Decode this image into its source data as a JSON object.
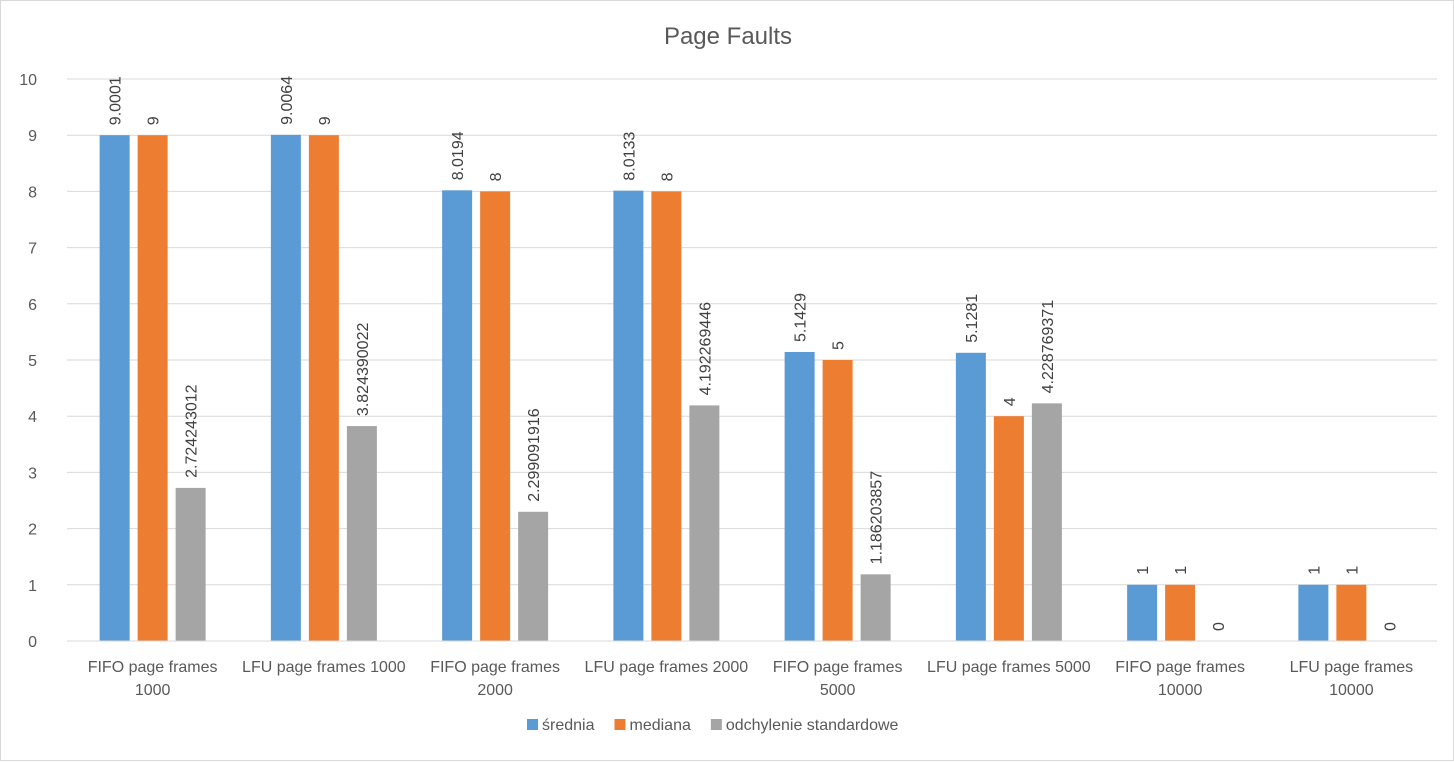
{
  "chart_data": {
    "type": "bar",
    "title": "Page Faults",
    "xlabel": "",
    "ylabel": "",
    "ylim": [
      0,
      10
    ],
    "yticks": [
      "0",
      "1",
      "2",
      "3",
      "4",
      "5",
      "6",
      "7",
      "8",
      "9",
      "10"
    ],
    "grid": true,
    "legend_position": "bottom",
    "categories": [
      [
        "FIFO page frames",
        "1000"
      ],
      [
        "LFU page frames 1000"
      ],
      [
        "FIFO page frames",
        "2000"
      ],
      [
        "LFU page frames 2000"
      ],
      [
        "FIFO page frames",
        "5000"
      ],
      [
        "LFU page frames 5000"
      ],
      [
        "FIFO page frames",
        "10000"
      ],
      [
        "LFU page frames",
        "10000"
      ]
    ],
    "series": [
      {
        "name": "średnia",
        "color": "#5b9bd5",
        "values": [
          9.0001,
          9.0064,
          8.0194,
          8.0133,
          5.1429,
          5.1281,
          1,
          1
        ],
        "labels": [
          "9.0001",
          "9.0064",
          "8.0194",
          "8.0133",
          "5.1429",
          "5.1281",
          "1",
          "1"
        ]
      },
      {
        "name": "mediana",
        "color": "#ed7d31",
        "values": [
          9,
          9,
          8,
          8,
          5,
          4,
          1,
          1
        ],
        "labels": [
          "9",
          "9",
          "8",
          "8",
          "5",
          "4",
          "1",
          "1"
        ]
      },
      {
        "name": "odchylenie standardowe",
        "color": "#a5a5a5",
        "values": [
          2.724243012,
          3.824390022,
          2.299091916,
          4.192269446,
          1.186203857,
          4.228769371,
          0,
          0
        ],
        "labels": [
          "2.724243012",
          "3.824390022",
          "2.299091916",
          "4.192269446",
          "1.186203857",
          "4.228769371",
          "0",
          "0"
        ]
      }
    ]
  }
}
